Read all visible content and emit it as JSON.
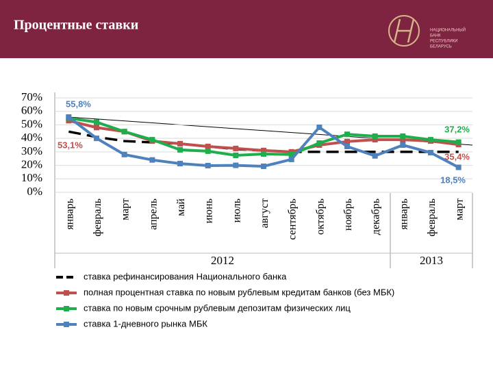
{
  "header": {
    "title": "Процентные ставки",
    "logo_text": [
      "НАЦИОНАЛЬНЫЙ",
      "БАНК",
      "РЕСПУБЛИКИ",
      "БЕЛАРУСЬ"
    ]
  },
  "chart_data": {
    "type": "line",
    "categories": [
      "январь",
      "февраль",
      "март",
      "апрель",
      "май",
      "июнь",
      "июль",
      "август",
      "сентябрь",
      "октябрь",
      "ноябрь",
      "декабрь",
      "январь",
      "февраль",
      "март"
    ],
    "years": [
      "2012",
      "2013"
    ],
    "ylim": [
      0,
      70
    ],
    "yticks": [
      {
        "value": 0,
        "label": "0%"
      },
      {
        "value": 10,
        "label": "10%"
      },
      {
        "value": 20,
        "label": "20%"
      },
      {
        "value": 30,
        "label": "30%"
      },
      {
        "value": 40,
        "label": "40%"
      },
      {
        "value": 50,
        "label": "50%"
      },
      {
        "value": 60,
        "label": "60%"
      },
      {
        "value": 70,
        "label": "70%"
      }
    ],
    "grid": true,
    "series": [
      {
        "name": "ставка рефинансирования Национального банка",
        "color": "#000000",
        "dashed": true,
        "markers": false,
        "values": [
          45,
          41,
          38,
          37,
          36,
          34,
          32,
          31,
          30,
          30,
          30,
          30,
          30,
          30,
          30
        ]
      },
      {
        "name": "полная процентная ставка  по новым рублевым кредитам банков (без МБК)",
        "color": "#c0504d",
        "dashed": false,
        "markers": true,
        "values": [
          53.1,
          48,
          45,
          38,
          36,
          34,
          32.5,
          31,
          30,
          35,
          37.6,
          39,
          39,
          38,
          35.4
        ],
        "value_labels": [
          "53,1%",
          null,
          null,
          null,
          null,
          null,
          null,
          null,
          null,
          null,
          null,
          null,
          null,
          null,
          "35,4%"
        ]
      },
      {
        "name": "ставка по новым срочным рублевым депозитам физических лиц",
        "color": "#1fae4b",
        "dashed": false,
        "markers": true,
        "values": [
          55,
          52,
          45,
          39,
          31.5,
          30.5,
          27.4,
          28.4,
          28,
          36.5,
          43,
          41.6,
          41.6,
          39,
          37.2
        ],
        "value_labels": [
          null,
          null,
          null,
          null,
          null,
          null,
          null,
          null,
          null,
          null,
          null,
          null,
          null,
          null,
          "37,2%"
        ]
      },
      {
        "name": "ставка 1-дневного рынка МБК",
        "color": "#4f81bd",
        "dashed": false,
        "markers": true,
        "values": [
          55.8,
          40,
          28,
          24,
          21.3,
          19.8,
          20,
          19.3,
          24.4,
          48.2,
          34,
          27,
          35,
          29.4,
          18.5
        ],
        "value_labels": [
          "55,8%",
          null,
          null,
          null,
          null,
          null,
          null,
          null,
          null,
          null,
          null,
          null,
          null,
          null,
          "18,5%"
        ]
      }
    ]
  }
}
